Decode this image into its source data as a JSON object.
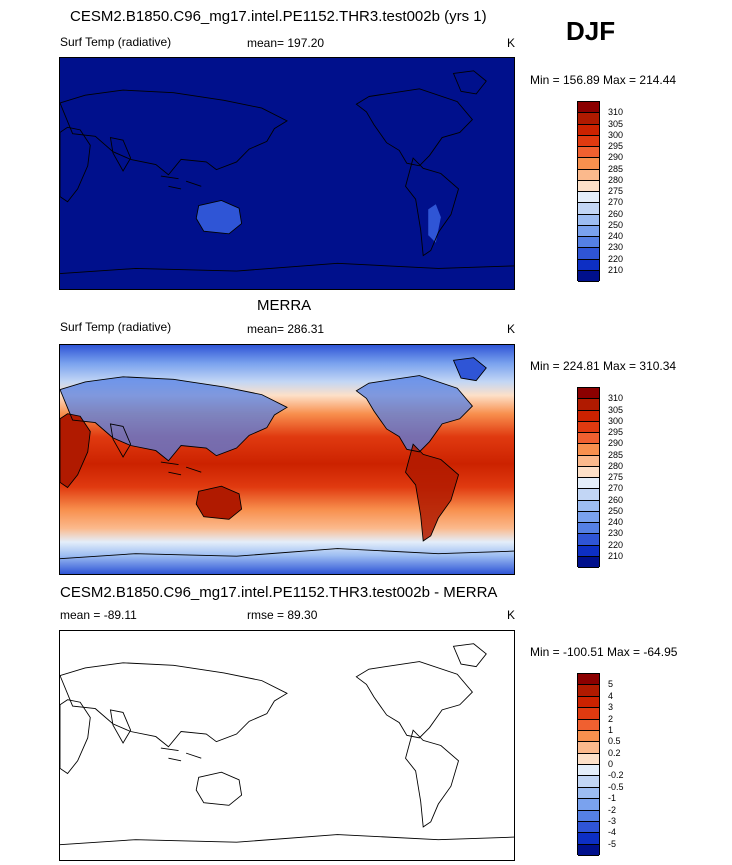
{
  "season": "DJF",
  "panels": [
    {
      "title": "CESM2.B1850.C96_mg17.intel.PE1152.THR3.test002b (yrs 1)",
      "variable": "Surf Temp (radiative)",
      "stat": "mean= 197.20",
      "stat2": "",
      "units": "K",
      "minmax": "Min = 156.89 Max = 214.44",
      "levels": [
        "310",
        "305",
        "300",
        "295",
        "290",
        "285",
        "280",
        "275",
        "270",
        "260",
        "250",
        "240",
        "230",
        "220",
        "210"
      ],
      "colors": [
        "#8b0000",
        "#b01a00",
        "#cc2200",
        "#e03a10",
        "#f06030",
        "#f8904e",
        "#fbb98c",
        "#fde0c8",
        "#e4eefa",
        "#c2d6f5",
        "#9dbdf2",
        "#7aa2ee",
        "#5580e4",
        "#2f55d6",
        "#0d2fc4",
        "#00108c"
      ]
    },
    {
      "title": "MERRA",
      "variable": "Surf Temp (radiative)",
      "stat": "mean= 286.31",
      "stat2": "",
      "units": "K",
      "minmax": "Min = 224.81 Max = 310.34",
      "levels": [
        "310",
        "305",
        "300",
        "295",
        "290",
        "285",
        "280",
        "275",
        "270",
        "260",
        "250",
        "240",
        "230",
        "220",
        "210"
      ],
      "colors": [
        "#8b0000",
        "#b01a00",
        "#cc2200",
        "#e03a10",
        "#f06030",
        "#f8904e",
        "#fbb98c",
        "#fde0c8",
        "#e4eefa",
        "#c2d6f5",
        "#9dbdf2",
        "#7aa2ee",
        "#5580e4",
        "#2f55d6",
        "#0d2fc4",
        "#00108c"
      ]
    },
    {
      "title": "CESM2.B1850.C96_mg17.intel.PE1152.THR3.test002b - MERRA",
      "variable": "mean = -89.11",
      "stat": "rmse =  89.30",
      "stat2": "",
      "units": "K",
      "minmax": "Min = -100.51 Max = -64.95",
      "levels": [
        "5",
        "4",
        "3",
        "2",
        "1",
        "0.5",
        "0.2",
        "0",
        "-0.2",
        "-0.5",
        "-1",
        "-2",
        "-3",
        "-4",
        "-5"
      ],
      "colors": [
        "#8b0000",
        "#b01a00",
        "#cc2200",
        "#e03a10",
        "#f06030",
        "#f8904e",
        "#fbb98c",
        "#fde0c8",
        "#e4eefa",
        "#c2d6f5",
        "#9dbdf2",
        "#7aa2ee",
        "#5580e4",
        "#2f55d6",
        "#0d2fc4",
        "#00108c"
      ]
    }
  ],
  "map_fills": {
    "model": "#00108c",
    "model_warm_patch": "#2f55d6",
    "diff": "#ffffff"
  }
}
